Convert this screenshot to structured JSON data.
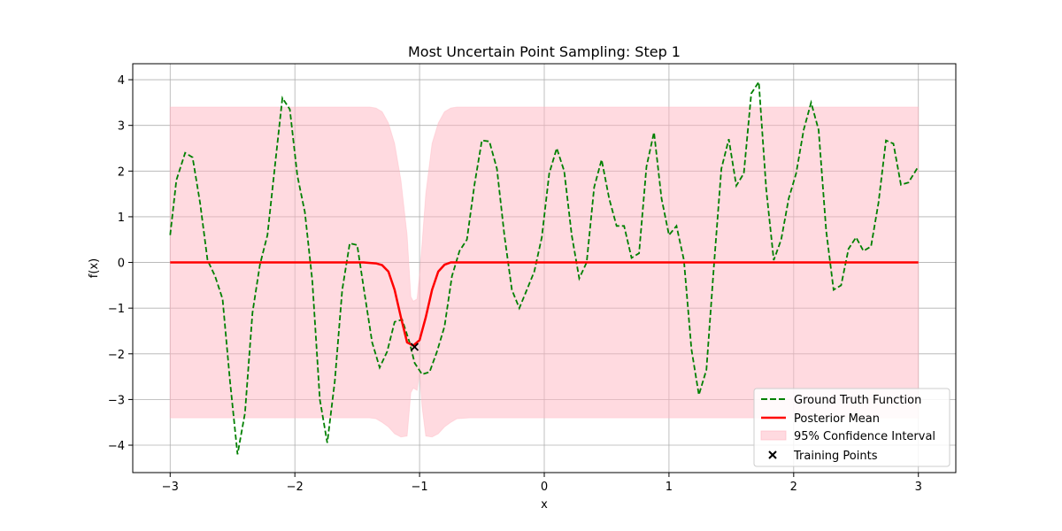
{
  "chart_data": {
    "type": "line",
    "title": "Most Uncertain Point Sampling: Step 1",
    "xlabel": "x",
    "ylabel": "f(x)",
    "xlim": [
      -3.3,
      3.3
    ],
    "ylim": [
      -4.6,
      4.35
    ],
    "xticks": [
      -3,
      -2,
      -1,
      0,
      1,
      2,
      3
    ],
    "xtick_labels": [
      "−3",
      "−2",
      "−1",
      "0",
      "1",
      "2",
      "3"
    ],
    "yticks": [
      -4,
      -3,
      -2,
      -1,
      0,
      1,
      2,
      3,
      4
    ],
    "ytick_labels": [
      "−4",
      "−3",
      "−2",
      "−1",
      "0",
      "1",
      "2",
      "3",
      "4"
    ],
    "grid": true,
    "legend_position": "lower-right",
    "series": [
      {
        "name": "Ground Truth Function",
        "style": "dashed",
        "color": "#008000",
        "x": [
          -3.0,
          -2.95,
          -2.88,
          -2.82,
          -2.76,
          -2.7,
          -2.64,
          -2.58,
          -2.52,
          -2.46,
          -2.4,
          -2.34,
          -2.28,
          -2.22,
          -2.16,
          -2.1,
          -2.04,
          -1.98,
          -1.92,
          -1.86,
          -1.8,
          -1.74,
          -1.68,
          -1.62,
          -1.56,
          -1.5,
          -1.44,
          -1.38,
          -1.32,
          -1.26,
          -1.2,
          -1.14,
          -1.08,
          -1.04,
          -0.98,
          -0.92,
          -0.86,
          -0.8,
          -0.74,
          -0.68,
          -0.62,
          -0.56,
          -0.5,
          -0.44,
          -0.38,
          -0.32,
          -0.26,
          -0.2,
          -0.14,
          -0.08,
          -0.02,
          0.04,
          0.1,
          0.16,
          0.22,
          0.28,
          0.34,
          0.4,
          0.46,
          0.52,
          0.58,
          0.64,
          0.7,
          0.76,
          0.82,
          0.88,
          0.94,
          1.0,
          1.06,
          1.12,
          1.18,
          1.24,
          1.3,
          1.36,
          1.42,
          1.48,
          1.54,
          1.6,
          1.66,
          1.72,
          1.78,
          1.84,
          1.9,
          1.96,
          2.02,
          2.08,
          2.14,
          2.2,
          2.26,
          2.32,
          2.38,
          2.44,
          2.5,
          2.56,
          2.62,
          2.68,
          2.74,
          2.8,
          2.86,
          2.92,
          3.0
        ],
        "y": [
          0.6,
          1.8,
          2.4,
          2.3,
          1.3,
          0.05,
          -0.3,
          -0.8,
          -2.6,
          -4.2,
          -3.3,
          -1.1,
          -0.05,
          0.6,
          2.1,
          3.6,
          3.35,
          1.9,
          1.1,
          -0.4,
          -3.0,
          -3.95,
          -2.6,
          -0.6,
          0.42,
          0.38,
          -0.7,
          -1.75,
          -2.3,
          -1.95,
          -1.3,
          -1.25,
          -1.75,
          -2.2,
          -2.45,
          -2.4,
          -1.95,
          -1.4,
          -0.3,
          0.25,
          0.5,
          1.7,
          2.67,
          2.65,
          2.05,
          0.6,
          -0.6,
          -1.0,
          -0.6,
          -0.2,
          0.55,
          1.95,
          2.5,
          2.0,
          0.6,
          -0.35,
          0.0,
          1.65,
          2.25,
          1.4,
          0.8,
          0.8,
          0.1,
          0.2,
          2.1,
          2.85,
          1.4,
          0.6,
          0.8,
          0.05,
          -1.9,
          -2.9,
          -2.35,
          -0.1,
          2.05,
          2.7,
          1.68,
          1.95,
          3.7,
          3.95,
          1.6,
          0.05,
          0.5,
          1.4,
          1.95,
          2.9,
          3.5,
          2.9,
          0.7,
          -0.6,
          -0.5,
          0.3,
          0.55,
          0.25,
          0.35,
          1.3,
          2.67,
          2.6,
          1.7,
          1.75,
          2.1
        ]
      },
      {
        "name": "Posterior Mean",
        "style": "solid",
        "color": "#ff0000",
        "x": [
          -3.0,
          -2.0,
          -1.45,
          -1.35,
          -1.3,
          -1.25,
          -1.2,
          -1.15,
          -1.1,
          -1.05,
          -1.0,
          -0.95,
          -0.9,
          -0.85,
          -0.8,
          -0.75,
          -0.7,
          -0.6,
          0.0,
          1.0,
          2.0,
          3.0
        ],
        "y": [
          0.0,
          0.0,
          0.0,
          -0.02,
          -0.06,
          -0.2,
          -0.6,
          -1.2,
          -1.75,
          -1.82,
          -1.7,
          -1.2,
          -0.6,
          -0.2,
          -0.05,
          0.0,
          0.0,
          0.0,
          0.0,
          0.0,
          0.0,
          0.0
        ]
      },
      {
        "name": "95% Confidence Interval",
        "style": "band",
        "color": "#ffb6c1",
        "x": [
          -3.0,
          -1.5,
          -1.4,
          -1.35,
          -1.3,
          -1.25,
          -1.2,
          -1.15,
          -1.1,
          -1.07,
          -1.05,
          -1.02,
          -1.0,
          -0.98,
          -0.95,
          -0.9,
          -0.85,
          -0.8,
          -0.75,
          -0.7,
          -0.6,
          0.0,
          3.0
        ],
        "upper": [
          3.4,
          3.4,
          3.4,
          3.38,
          3.3,
          3.05,
          2.6,
          1.8,
          0.6,
          -0.75,
          -0.85,
          -0.8,
          -0.25,
          0.4,
          1.5,
          2.6,
          3.05,
          3.3,
          3.38,
          3.4,
          3.4,
          3.4,
          3.4
        ],
        "lower": [
          -3.4,
          -3.4,
          -3.4,
          -3.42,
          -3.5,
          -3.6,
          -3.75,
          -3.82,
          -3.8,
          -2.85,
          -2.75,
          -2.8,
          -2.4,
          -3.15,
          -3.8,
          -3.82,
          -3.75,
          -3.6,
          -3.5,
          -3.42,
          -3.4,
          -3.4,
          -3.4
        ]
      },
      {
        "name": "Training Points",
        "style": "marker-x",
        "color": "#000000",
        "x": [
          -1.04
        ],
        "y": [
          -1.85
        ]
      }
    ]
  }
}
